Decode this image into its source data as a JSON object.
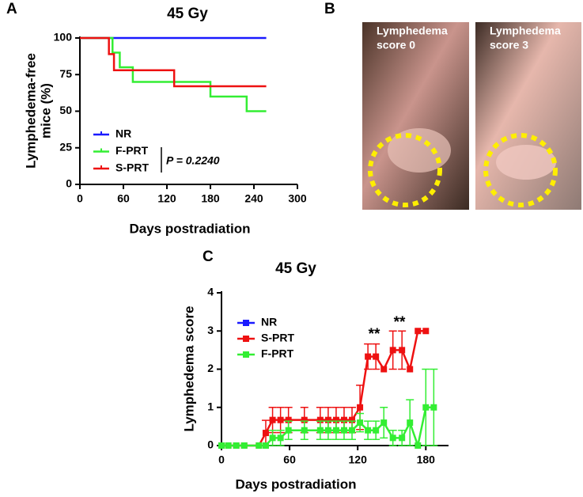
{
  "panel_labels": [
    "A",
    "B",
    "C"
  ],
  "photos": [
    {
      "label": [
        "Lymphedema",
        "score 0"
      ]
    },
    {
      "label": [
        "Lymphedema",
        "score 3"
      ]
    }
  ],
  "chart_data": [
    {
      "type": "step",
      "title": "45 Gy",
      "x_label": "Days postradiation",
      "y_label": [
        "Lymphedema-free",
        "mice (%)"
      ],
      "xlim": [
        0,
        300
      ],
      "xticks": [
        0,
        60,
        120,
        180,
        240,
        300
      ],
      "ylim": [
        0,
        100
      ],
      "yticks": [
        0,
        25,
        50,
        75,
        100
      ],
      "annotation": "P = 0.2240",
      "series": [
        {
          "name": "NR",
          "color": "#1a1aff",
          "x": [
            0,
            257
          ],
          "values": [
            100,
            100
          ]
        },
        {
          "name": "F-PRT",
          "color": "#33ee33",
          "x": [
            0,
            45,
            55,
            73,
            180,
            230,
            257
          ],
          "values": [
            100,
            90,
            80,
            70,
            60,
            50,
            50
          ]
        },
        {
          "name": "S-PRT",
          "color": "#ee1111",
          "x": [
            0,
            40,
            47,
            130,
            257
          ],
          "values": [
            100,
            89,
            78,
            67,
            67
          ]
        }
      ]
    },
    {
      "type": "line",
      "title": "45 Gy",
      "x_label": "Days postradiation",
      "y_label": "Lymphedema score",
      "xlim": [
        0,
        200
      ],
      "xticks": [
        0,
        60,
        120,
        180
      ],
      "ylim": [
        0,
        4
      ],
      "yticks": [
        0,
        1,
        2,
        3,
        4
      ],
      "annotations": [
        "**",
        "**"
      ],
      "series": [
        {
          "name": "NR",
          "color": "#1a1aff",
          "x": [
            0
          ],
          "values": [
            0
          ],
          "errors": [
            0
          ]
        },
        {
          "name": "S-PRT",
          "color": "#ee1111",
          "x": [
            0,
            6,
            13,
            20,
            33,
            39,
            45,
            52,
            59,
            73,
            87,
            94,
            101,
            108,
            115,
            122,
            129,
            136,
            143,
            151,
            159,
            166,
            173,
            180
          ],
          "values": [
            0,
            0,
            0,
            0,
            0,
            0.33,
            0.67,
            0.67,
            0.67,
            0.67,
            0.67,
            0.67,
            0.67,
            0.67,
            0.67,
            1,
            2.33,
            2.33,
            2,
            2.5,
            2.5,
            2,
            3,
            3
          ],
          "errors": [
            0,
            0,
            0,
            0,
            0,
            0.33,
            0.33,
            0.33,
            0.33,
            0.33,
            0.33,
            0.33,
            0.33,
            0.33,
            0.33,
            0.58,
            0.33,
            0.33,
            0,
            0.5,
            0.5,
            0,
            0,
            0
          ]
        },
        {
          "name": "F-PRT",
          "color": "#33ee33",
          "x": [
            0,
            6,
            13,
            20,
            33,
            39,
            45,
            52,
            59,
            73,
            87,
            94,
            101,
            108,
            115,
            122,
            129,
            136,
            143,
            151,
            159,
            166,
            173,
            180,
            187
          ],
          "values": [
            0,
            0,
            0,
            0,
            0,
            0,
            0.2,
            0.2,
            0.4,
            0.4,
            0.4,
            0.4,
            0.4,
            0.4,
            0.4,
            0.6,
            0.4,
            0.4,
            0.6,
            0.2,
            0.2,
            0.6,
            0,
            1,
            1
          ],
          "errors": [
            0,
            0,
            0,
            0,
            0,
            0,
            0.2,
            0.2,
            0.24,
            0.24,
            0.24,
            0.24,
            0.24,
            0.24,
            0.24,
            0.24,
            0.24,
            0.24,
            0.4,
            0.2,
            0.2,
            0.6,
            0,
            1,
            1
          ]
        }
      ]
    }
  ]
}
